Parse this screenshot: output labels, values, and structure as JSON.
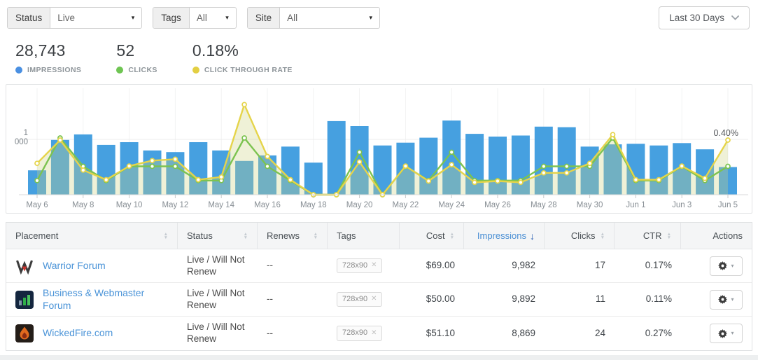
{
  "filters": {
    "status": {
      "label": "Status",
      "value": "Live"
    },
    "tags": {
      "label": "Tags",
      "value": "All"
    },
    "site": {
      "label": "Site",
      "value": "All"
    },
    "date_range": "Last 30 Days"
  },
  "stats": [
    {
      "value": "28,743",
      "label": "IMPRESSIONS",
      "color": "#4a90e2"
    },
    {
      "value": "52",
      "label": "CLICKS",
      "color": "#6fc553"
    },
    {
      "value": "0.18%",
      "label": "CLICK THROUGH RATE",
      "color": "#e3cf43"
    }
  ],
  "chart_data": {
    "type": "bar+line",
    "title": "",
    "categories": [
      "May 6",
      "May 7",
      "May 8",
      "May 9",
      "May 10",
      "May 11",
      "May 12",
      "May 13",
      "May 14",
      "May 15",
      "May 16",
      "May 17",
      "May 18",
      "May 19",
      "May 20",
      "May 21",
      "May 22",
      "May 23",
      "May 24",
      "May 25",
      "May 26",
      "May 27",
      "May 28",
      "May 29",
      "May 30",
      "May 31",
      "Jun 1",
      "Jun 2",
      "Jun 3",
      "Jun 4",
      "Jun 5"
    ],
    "series": [
      {
        "name": "Impressions",
        "type": "bar",
        "color": "#46a0e0",
        "values": [
          440,
          990,
          1090,
          900,
          950,
          800,
          770,
          950,
          800,
          610,
          710,
          870,
          580,
          1330,
          1240,
          890,
          940,
          1030,
          1340,
          1100,
          1050,
          1070,
          1230,
          1220,
          870,
          910,
          920,
          890,
          933,
          820,
          500
        ]
      },
      {
        "name": "Clicks",
        "type": "line",
        "color": "#7cc350",
        "values": [
          1,
          4,
          2,
          1,
          2,
          2,
          2,
          1,
          1,
          4,
          2,
          1,
          0,
          0,
          3,
          0,
          2,
          1,
          3,
          1,
          1,
          1,
          2,
          2,
          2,
          4,
          1,
          1,
          2,
          1,
          2
        ]
      },
      {
        "name": "CTR %",
        "type": "line",
        "color": "#e5d44a",
        "area_fill": "rgba(205,212,130,0.32)",
        "values": [
          0.23,
          0.4,
          0.18,
          0.11,
          0.21,
          0.25,
          0.26,
          0.11,
          0.13,
          0.66,
          0.28,
          0.11,
          0,
          0,
          0.24,
          0,
          0.21,
          0.1,
          0.22,
          0.09,
          0.1,
          0.09,
          0.16,
          0.16,
          0.23,
          0.44,
          0.11,
          0.11,
          0.21,
          0.12,
          0.4
        ]
      }
    ],
    "y_axis": {
      "tick_value": 1000,
      "tick_label_lines": [
        "1",
        "000"
      ]
    },
    "x_tick_labels": [
      "May 6",
      "May 8",
      "May 10",
      "May 12",
      "May 14",
      "May 16",
      "May 18",
      "May 20",
      "May 22",
      "May 24",
      "May 26",
      "May 28",
      "May 30",
      "Jun 1",
      "Jun 3",
      "Jun 5"
    ],
    "annotation": {
      "text": "0.40%",
      "series": "CTR %",
      "category": "Jun 5"
    },
    "grid": true,
    "legend_position": "none"
  },
  "table": {
    "columns": [
      {
        "label": "Placement",
        "sortable": true,
        "align": "left"
      },
      {
        "label": "Status",
        "sortable": true,
        "align": "left"
      },
      {
        "label": "Renews",
        "sortable": true,
        "align": "left"
      },
      {
        "label": "Tags",
        "sortable": false,
        "align": "left"
      },
      {
        "label": "Cost",
        "sortable": true,
        "align": "right"
      },
      {
        "label": "Impressions",
        "sortable": true,
        "align": "right",
        "sorted": "desc"
      },
      {
        "label": "Clicks",
        "sortable": true,
        "align": "right"
      },
      {
        "label": "CTR",
        "sortable": true,
        "align": "right"
      },
      {
        "label": "Actions",
        "sortable": false,
        "align": "right"
      }
    ],
    "rows": [
      {
        "placement": "Warrior Forum",
        "icon": "warrior-w-icon",
        "status": "Live / Will Not Renew",
        "renews": "--",
        "tag": "728x90",
        "cost": "$69.00",
        "impressions": "9,982",
        "clicks": "17",
        "ctr": "0.17%"
      },
      {
        "placement": "Business & Webmaster Forum",
        "icon": "bar-chart-icon",
        "status": "Live / Will Not Renew",
        "renews": "--",
        "tag": "728x90",
        "cost": "$50.00",
        "impressions": "9,892",
        "clicks": "11",
        "ctr": "0.11%"
      },
      {
        "placement": "WickedFire.com",
        "icon": "fire-icon",
        "status": "Live / Will Not Renew",
        "renews": "--",
        "tag": "728x90",
        "cost": "$51.10",
        "impressions": "8,869",
        "clicks": "24",
        "ctr": "0.27%"
      }
    ]
  }
}
